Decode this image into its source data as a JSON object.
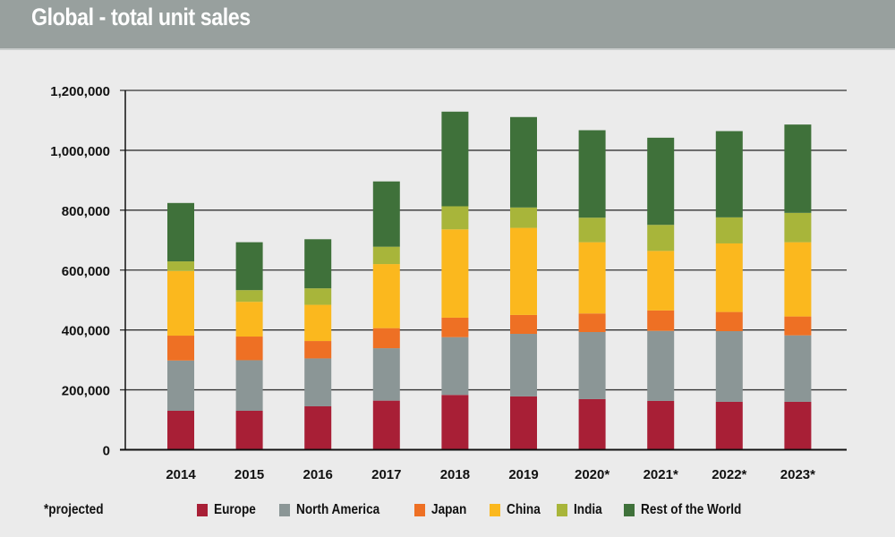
{
  "header": {
    "title": "Global - total unit sales"
  },
  "footnote": "*projected",
  "colors": {
    "Europe": "#a81f36",
    "North America": "#8b9696",
    "Japan": "#ee7024",
    "China": "#fbb81e",
    "India": "#a8b53a",
    "Rest of the World": "#3f713a"
  },
  "chart_data": {
    "type": "bar",
    "stacked": true,
    "title": "Global - total unit sales",
    "xlabel": "",
    "ylabel": "",
    "ylim": [
      0,
      1200000
    ],
    "yticks": [
      0,
      200000,
      400000,
      600000,
      800000,
      1000000,
      1200000
    ],
    "ytick_labels": [
      "0",
      "200,000",
      "400,000",
      "600,000",
      "800,000",
      "1,000,000",
      "1,200,000"
    ],
    "grid": true,
    "legend_position": "bottom",
    "categories": [
      "2014",
      "2015",
      "2016",
      "2017",
      "2018",
      "2019",
      "2020*",
      "2021*",
      "2022*",
      "2023*"
    ],
    "series": [
      {
        "name": "Europe",
        "values": [
          130000,
          130000,
          145000,
          164000,
          183000,
          178000,
          169000,
          163000,
          160000,
          160000
        ]
      },
      {
        "name": "North America",
        "values": [
          168000,
          169000,
          160000,
          175000,
          193000,
          209000,
          224000,
          234000,
          236000,
          222000
        ]
      },
      {
        "name": "Japan",
        "values": [
          83000,
          79000,
          58000,
          67000,
          65000,
          63000,
          62000,
          68000,
          64000,
          63000
        ]
      },
      {
        "name": "China",
        "values": [
          216000,
          116000,
          121000,
          214000,
          295000,
          291000,
          238000,
          199000,
          229000,
          248000
        ]
      },
      {
        "name": "India",
        "values": [
          32000,
          39000,
          55000,
          58000,
          77000,
          68000,
          82000,
          87000,
          87000,
          98000
        ]
      },
      {
        "name": "Rest of the World",
        "values": [
          195000,
          160000,
          164000,
          218000,
          316000,
          302000,
          292000,
          291000,
          288000,
          295000
        ]
      }
    ],
    "annotations": [
      "*projected"
    ]
  }
}
